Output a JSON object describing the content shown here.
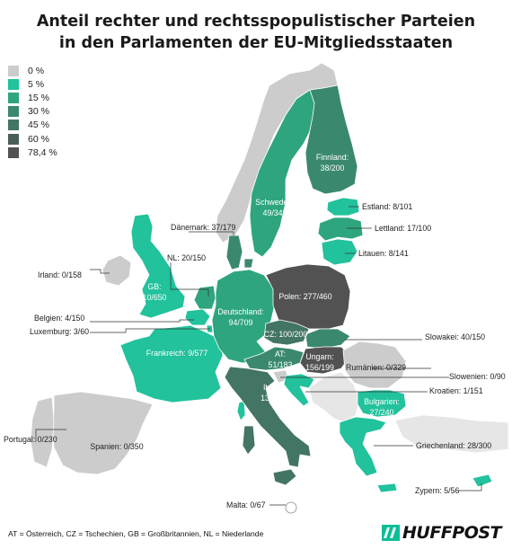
{
  "title_line1": "Anteil rechter und rechtsspopulistischer Parteien",
  "title_line2": "in den Parlamenten der EU-Mitgliedsstaaten",
  "legend": [
    {
      "label": "0 %",
      "color": "#cccccc"
    },
    {
      "label": "5 %",
      "color": "#21c29c"
    },
    {
      "label": "15 %",
      "color": "#2ea57f"
    },
    {
      "label": "30 %",
      "color": "#3a896f"
    },
    {
      "label": "45 %",
      "color": "#437564"
    },
    {
      "label": "60 %",
      "color": "#4a5f57"
    },
    {
      "label": "78,4 %",
      "color": "#525252"
    }
  ],
  "countries": {
    "finnland": {
      "name": "Finnland:",
      "seats": "38/200"
    },
    "schweden": {
      "name": "Schweden:",
      "seats": "49/349"
    },
    "estland": {
      "label": "Estland: 8/101"
    },
    "lettland": {
      "label": "Lettland: 17/100"
    },
    "litauen": {
      "label": "Litauen: 8/141"
    },
    "daenemark": {
      "label": "Dänemark: 37/179"
    },
    "nl": {
      "label": "NL: 20/150"
    },
    "irland": {
      "label": "Irland: 0/158"
    },
    "gb": {
      "name": "GB:",
      "seats": "10/650"
    },
    "polen": {
      "label": "Polen: 277/460"
    },
    "deutschland": {
      "name": "Deutschland:",
      "seats": "94/709"
    },
    "belgien": {
      "label": "Belgien: 4/150"
    },
    "luxemburg": {
      "label": "Luxemburg: 3/60"
    },
    "cz": {
      "label": "CZ: 100/200"
    },
    "slowakei": {
      "label": "Slowakei: 40/150"
    },
    "frankreich": {
      "label": "Frankreich: 9/577"
    },
    "at": {
      "name": "AT:",
      "seats": "51/183"
    },
    "ungarn": {
      "name": "Ungarn:",
      "seats": "156/199"
    },
    "rumaenien": {
      "label": "Rumänien: 0/329"
    },
    "slowenien": {
      "label": "Slowenien: 0/90"
    },
    "kroatien": {
      "label": "Kroatien: 1/151"
    },
    "italien": {
      "name": "Italien:",
      "seats": "136/630"
    },
    "bulgarien": {
      "name": "Bulgarien:",
      "seats": "27/240"
    },
    "portugal": {
      "label": "Portugal: 0/230"
    },
    "spanien": {
      "label": "Spanien: 0/350"
    },
    "griechenland": {
      "label": "Griechenland: 28/300"
    },
    "zypern": {
      "label": "Zypern: 5/56"
    },
    "malta": {
      "label": "Malta: 0/67"
    }
  },
  "footnote": "AT = Österreich, CZ = Tschechien, GB = Großbritannien, NL = Niederlande",
  "brand": "HUFFPOST"
}
